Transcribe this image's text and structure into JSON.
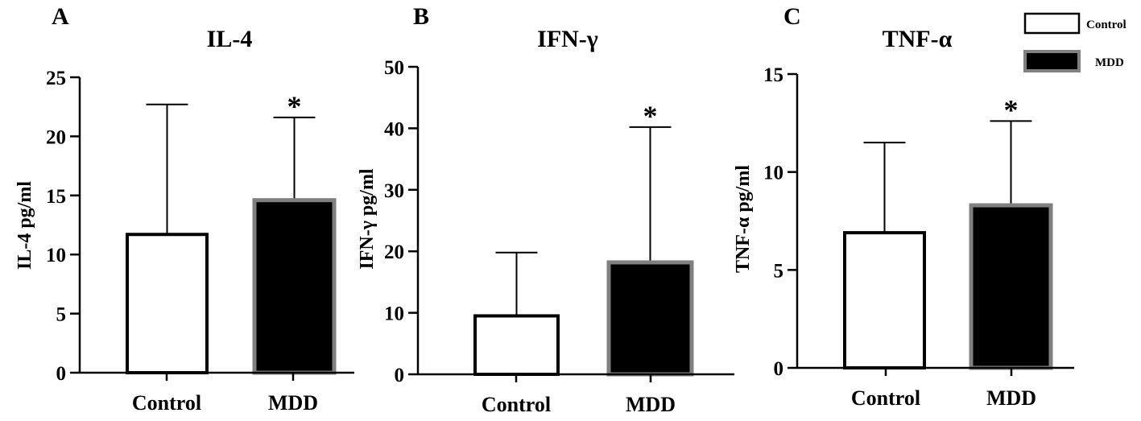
{
  "legend": [
    {
      "label": "Control",
      "fill": "#ffffff",
      "stroke": "#000000"
    },
    {
      "label": "MDD",
      "fill": "#000000",
      "stroke": "#808080"
    }
  ],
  "chart_data": [
    {
      "type": "bar",
      "panel": "A",
      "title": "IL-4",
      "ylabel": "IL-4 pg/ml",
      "categories": [
        "Control",
        "MDD"
      ],
      "values": [
        11.7,
        14.6
      ],
      "error_upper": [
        22.7,
        21.6
      ],
      "significance": [
        "",
        "*"
      ],
      "ylim": [
        0,
        25
      ],
      "yticks": [
        0,
        5,
        10,
        15,
        20,
        25
      ]
    },
    {
      "type": "bar",
      "panel": "B",
      "title": "IFN-γ",
      "ylabel": "IFN-γ pg/ml",
      "categories": [
        "Control",
        "MDD"
      ],
      "values": [
        9.5,
        18.2
      ],
      "error_upper": [
        19.8,
        40.2
      ],
      "significance": [
        "",
        "*"
      ],
      "ylim": [
        0,
        50
      ],
      "yticks": [
        0,
        10,
        20,
        30,
        40,
        50
      ]
    },
    {
      "type": "bar",
      "panel": "C",
      "title": "TNF-α",
      "ylabel": "TNF-α pg/ml",
      "categories": [
        "Control",
        "MDD"
      ],
      "values": [
        6.9,
        8.3
      ],
      "error_upper": [
        11.5,
        12.6
      ],
      "significance": [
        "",
        "*"
      ],
      "ylim": [
        0,
        15
      ],
      "yticks": [
        0,
        5,
        10,
        15
      ]
    }
  ]
}
